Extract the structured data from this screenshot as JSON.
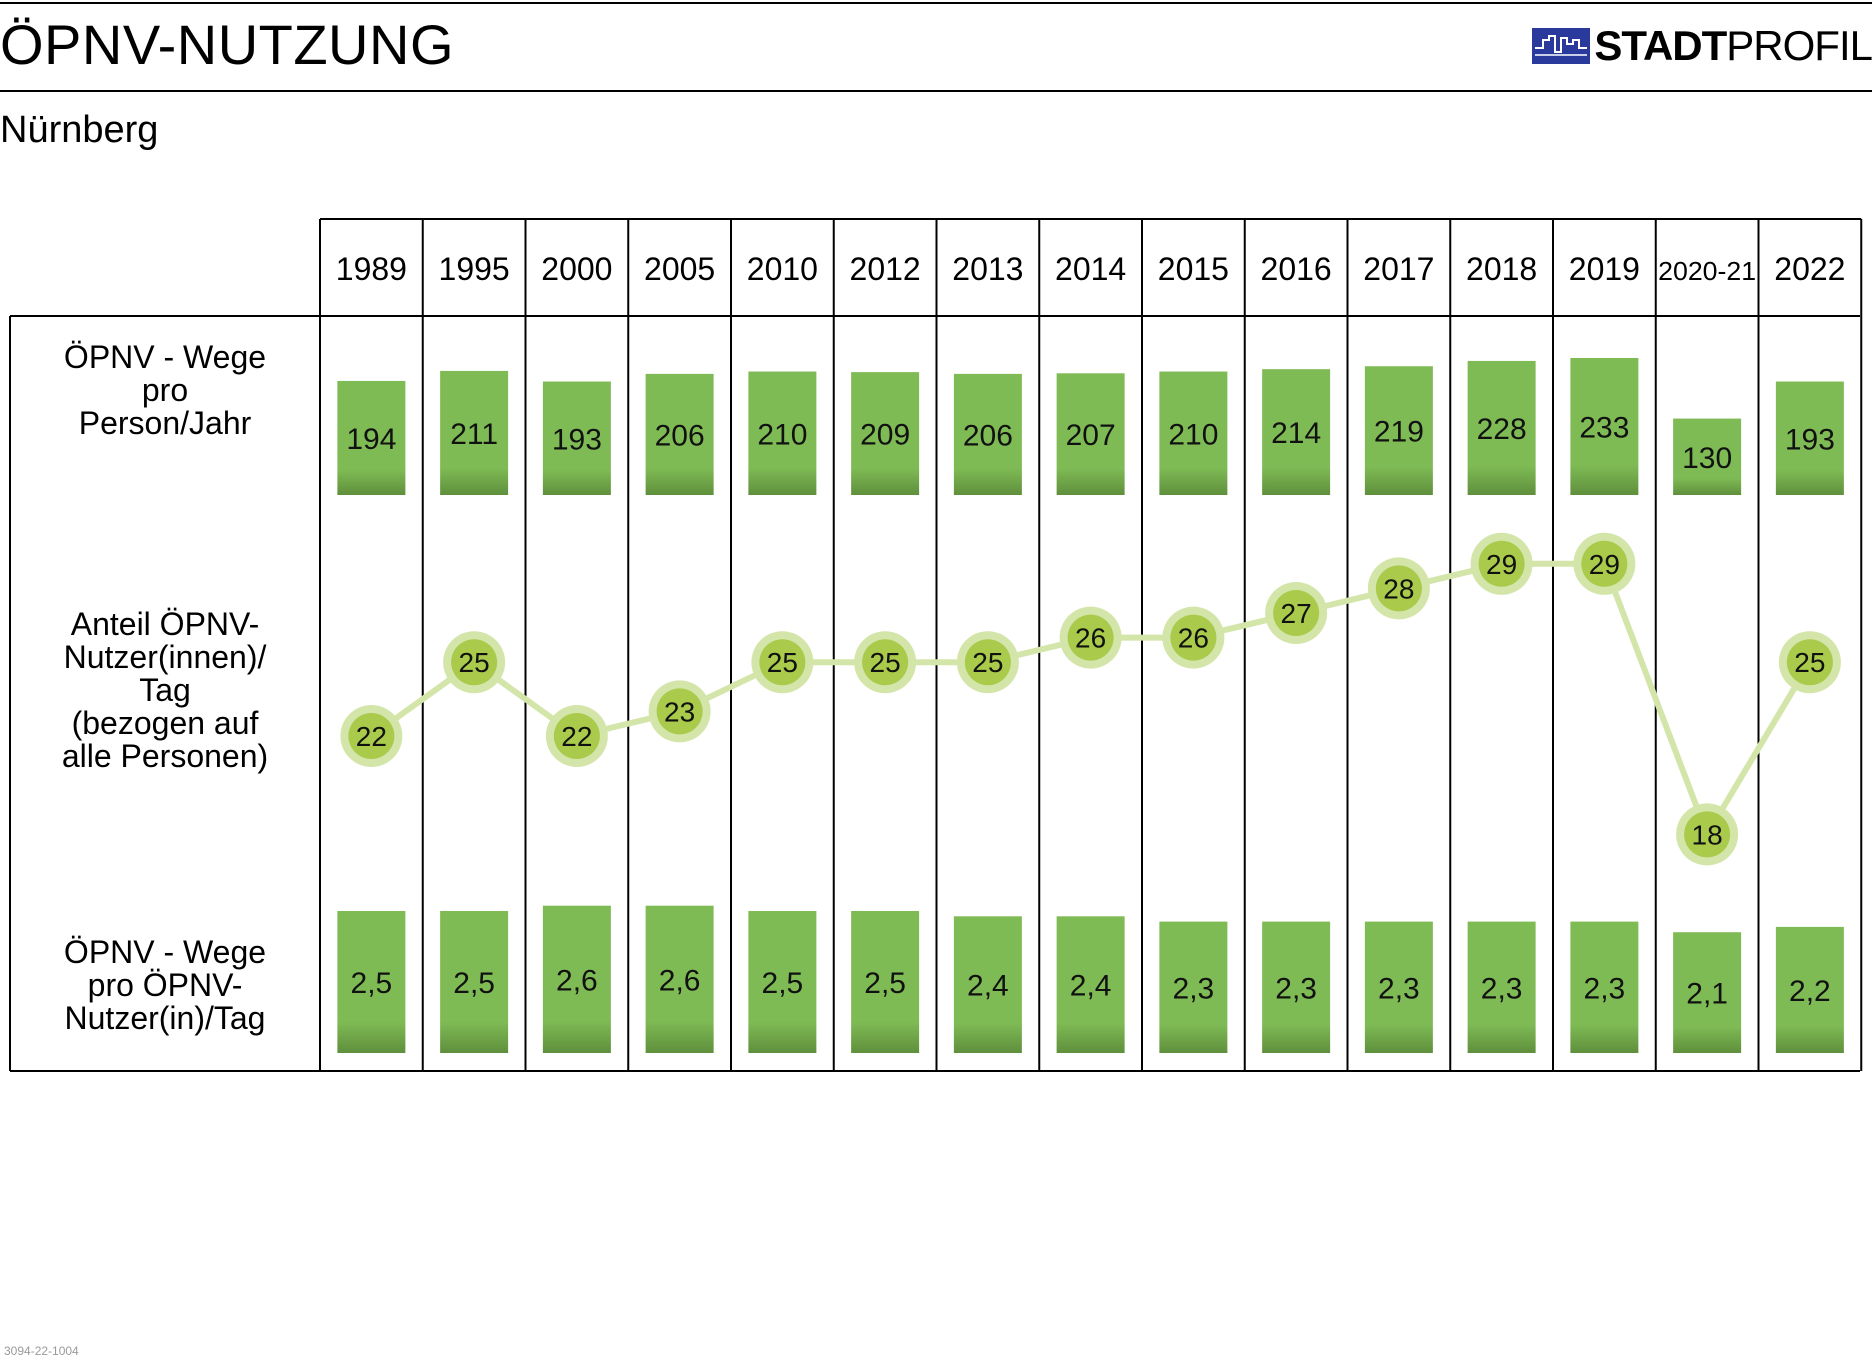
{
  "header": {
    "title": "ÖPNV-NUTZUNG",
    "subtitle": "Nürnberg",
    "brand_strong": "STADT",
    "brand_light": "PROFIL"
  },
  "footer": {
    "code": "3094-22-1004"
  },
  "colors": {
    "bar_fill": "#7fbb55",
    "bar_bottom": "#5f8f3c",
    "line": "#d3e5a8",
    "marker_ring": "#d3e5a8",
    "marker_fill": "#a9ca4a",
    "brand_blue": "#2a3a9c"
  },
  "chart_data": {
    "type": "table",
    "categories": [
      "1989",
      "1995",
      "2000",
      "2005",
      "2010",
      "2012",
      "2013",
      "2014",
      "2015",
      "2016",
      "2017",
      "2018",
      "2019",
      "2020-21",
      "2022"
    ],
    "rows": [
      {
        "label_lines": [
          "ÖPNV - Wege",
          "pro",
          "Person/Jahr"
        ],
        "type": "bar",
        "values": [
          194,
          211,
          193,
          206,
          210,
          209,
          206,
          207,
          210,
          214,
          219,
          228,
          233,
          130,
          193
        ],
        "labels": [
          "194",
          "211",
          "193",
          "206",
          "210",
          "209",
          "206",
          "207",
          "210",
          "214",
          "219",
          "228",
          "233",
          "130",
          "193"
        ]
      },
      {
        "label_lines": [
          "Anteil ÖPNV-",
          "Nutzer(innen)/",
          "Tag",
          "(bezogen auf",
          "alle Personen)"
        ],
        "type": "line",
        "values": [
          22,
          25,
          22,
          23,
          25,
          25,
          25,
          26,
          26,
          27,
          28,
          29,
          29,
          18,
          25
        ],
        "labels": [
          "22",
          "25",
          "22",
          "23",
          "25",
          "25",
          "25",
          "26",
          "26",
          "27",
          "28",
          "29",
          "29",
          "18",
          "25"
        ]
      },
      {
        "label_lines": [
          "ÖPNV - Wege",
          "pro ÖPNV-",
          "Nutzer(in)/Tag"
        ],
        "type": "bar",
        "values": [
          2.5,
          2.5,
          2.6,
          2.6,
          2.5,
          2.5,
          2.4,
          2.4,
          2.3,
          2.3,
          2.3,
          2.3,
          2.3,
          2.1,
          2.2
        ],
        "labels": [
          "2,5",
          "2,5",
          "2,6",
          "2,6",
          "2,5",
          "2,5",
          "2,4",
          "2,4",
          "2,3",
          "2,3",
          "2,3",
          "2,3",
          "2,3",
          "2,1",
          "2,2"
        ]
      }
    ]
  }
}
